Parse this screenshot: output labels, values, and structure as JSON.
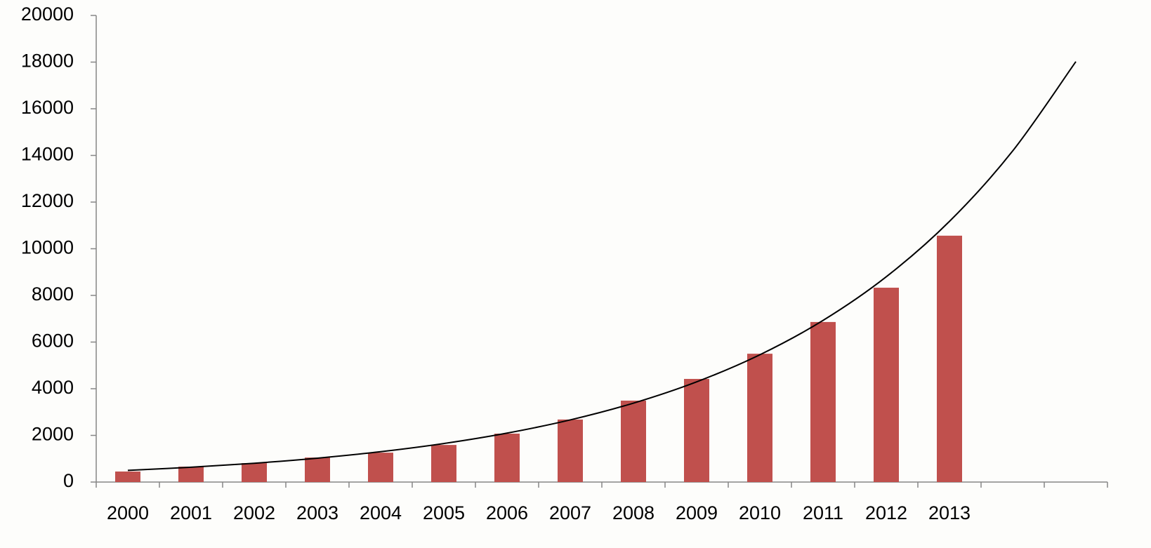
{
  "chart_data": {
    "type": "bar",
    "categories": [
      "2000",
      "2001",
      "2002",
      "2003",
      "2004",
      "2005",
      "2006",
      "2007",
      "2008",
      "2009",
      "2010",
      "2011",
      "2012",
      "2013",
      null,
      null
    ],
    "values": [
      451,
      660,
      810,
      1050,
      1260,
      1590,
      2075,
      2680,
      3490,
      4420,
      5500,
      6860,
      8330,
      10560,
      null,
      null
    ],
    "color": "#c0504d",
    "trendline": {
      "color": "#000000",
      "values": [
        500,
        635,
        806,
        1024,
        1300,
        1651,
        2097,
        2663,
        3382,
        4295,
        5455,
        6928,
        8798,
        11173,
        14190,
        18021
      ]
    },
    "ylim": [
      0,
      20000
    ],
    "yticks": [
      0,
      2000,
      4000,
      6000,
      8000,
      10000,
      12000,
      14000,
      16000,
      18000,
      20000
    ]
  }
}
